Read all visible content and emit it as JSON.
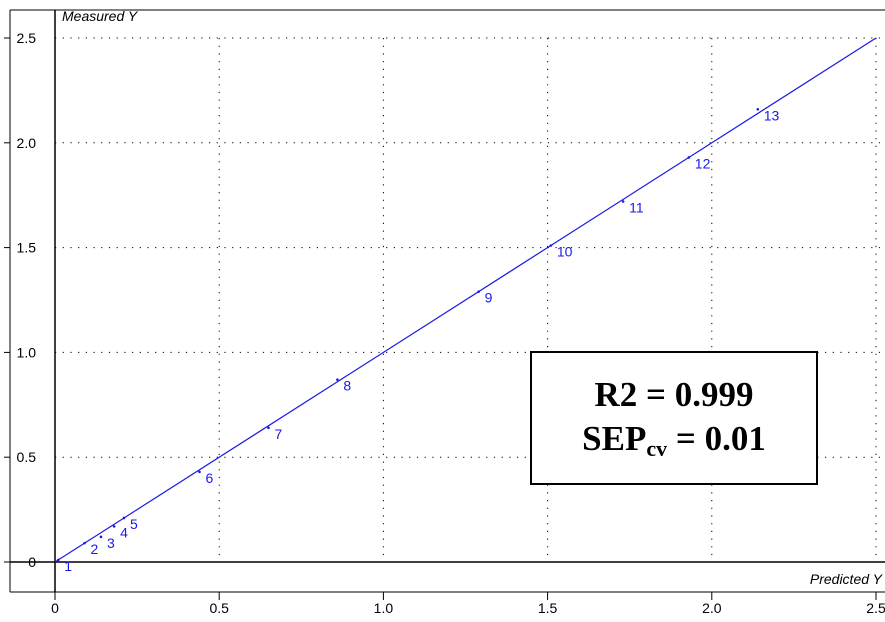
{
  "chart_data": {
    "type": "scatter",
    "xlabel": "Predicted Y",
    "ylabel": "Measured Y",
    "xlim": [
      0,
      2.5
    ],
    "ylim": [
      0,
      2.5
    ],
    "grid": true,
    "x_ticks": [
      "0",
      "0.5",
      "1.0",
      "1.5",
      "2.0",
      "2.5"
    ],
    "y_ticks": [
      "0",
      "0.5",
      "1.0",
      "1.5",
      "2.0",
      "2.5"
    ],
    "fit_line": [
      [
        0,
        0
      ],
      [
        2.5,
        2.5
      ]
    ],
    "points": [
      {
        "label": "1",
        "x": 0.01,
        "y": 0.01
      },
      {
        "label": "2",
        "x": 0.09,
        "y": 0.09
      },
      {
        "label": "3",
        "x": 0.14,
        "y": 0.12
      },
      {
        "label": "4",
        "x": 0.18,
        "y": 0.17
      },
      {
        "label": "5",
        "x": 0.21,
        "y": 0.21
      },
      {
        "label": "6",
        "x": 0.44,
        "y": 0.43
      },
      {
        "label": "7",
        "x": 0.65,
        "y": 0.64
      },
      {
        "label": "8",
        "x": 0.86,
        "y": 0.87
      },
      {
        "label": "9",
        "x": 1.29,
        "y": 1.29
      },
      {
        "label": "10",
        "x": 1.51,
        "y": 1.51
      },
      {
        "label": "11",
        "x": 1.73,
        "y": 1.72
      },
      {
        "label": "12",
        "x": 1.93,
        "y": 1.93
      },
      {
        "label": "13",
        "x": 2.14,
        "y": 2.16
      }
    ],
    "colors": {
      "series": "#1a1ae6",
      "axis": "#000000",
      "grid": "#000000"
    }
  },
  "stats": {
    "r2_text": "R2 = 0.999",
    "sep_main": "SEP",
    "sep_sub": "cv",
    "sep_value": " = 0.01"
  }
}
